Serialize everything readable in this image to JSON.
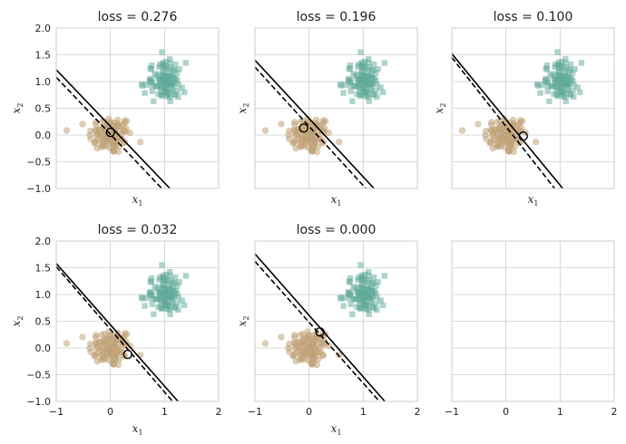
{
  "colors": {
    "class0": "#c4a57c",
    "class1": "#5fa99a",
    "decision": "#000000",
    "margin": "#000000",
    "grid": "#cccccc",
    "frame": "#cccccc"
  },
  "chart_data": [
    {
      "type": "scatter",
      "title": "loss = 0.276",
      "xlabel_main": "x",
      "xlabel_sub": "1",
      "ylabel_main": "x",
      "ylabel_sub": "2",
      "xlim": [
        -1,
        2
      ],
      "ylim": [
        -1,
        2
      ],
      "xticks": [
        -1,
        0,
        1,
        2
      ],
      "yticks": [
        -1.0,
        -0.5,
        0.0,
        0.5,
        1.0,
        1.5,
        2.0
      ],
      "show_xticklabels": false,
      "show_yticklabels": true,
      "show_ylabel": true,
      "grid": true,
      "decision_line": [
        [
          -1.0,
          1.22
        ],
        [
          1.1,
          -1.0
        ]
      ],
      "margin_line": [
        [
          -1.0,
          1.08
        ],
        [
          0.95,
          -1.0
        ]
      ],
      "highlight_point": [
        0.0,
        0.05
      ]
    },
    {
      "type": "scatter",
      "title": "loss = 0.196",
      "xlabel_main": "x",
      "xlabel_sub": "1",
      "ylabel_main": "x",
      "ylabel_sub": "2",
      "xlim": [
        -1,
        2
      ],
      "ylim": [
        -1,
        2
      ],
      "xticks": [
        -1,
        0,
        1,
        2
      ],
      "yticks": [
        -1.0,
        -0.5,
        0.0,
        0.5,
        1.0,
        1.5,
        2.0
      ],
      "show_xticklabels": false,
      "show_yticklabels": false,
      "show_ylabel": true,
      "grid": true,
      "decision_line": [
        [
          -1.0,
          1.4
        ],
        [
          1.2,
          -1.0
        ]
      ],
      "margin_line": [
        [
          -1.0,
          1.27
        ],
        [
          1.05,
          -1.0
        ]
      ],
      "highlight_point": [
        -0.1,
        0.13
      ]
    },
    {
      "type": "scatter",
      "title": "loss = 0.100",
      "xlabel_main": "x",
      "xlabel_sub": "1",
      "ylabel_main": "x",
      "ylabel_sub": "2",
      "xlim": [
        -1,
        2
      ],
      "ylim": [
        -1,
        2
      ],
      "xticks": [
        -1,
        0,
        1,
        2
      ],
      "yticks": [
        -1.0,
        -0.5,
        0.0,
        0.5,
        1.0,
        1.5,
        2.0
      ],
      "show_xticklabels": false,
      "show_yticklabels": false,
      "show_ylabel": true,
      "grid": true,
      "decision_line": [
        [
          -1.0,
          1.52
        ],
        [
          1.05,
          -1.0
        ]
      ],
      "margin_line": [
        [
          -1.0,
          1.45
        ],
        [
          0.9,
          -1.0
        ]
      ],
      "highlight_point": [
        0.32,
        -0.02
      ]
    },
    {
      "type": "scatter",
      "title": "loss = 0.032",
      "xlabel_main": "x",
      "xlabel_sub": "1",
      "ylabel_main": "x",
      "ylabel_sub": "2",
      "xlim": [
        -1,
        2
      ],
      "ylim": [
        -1,
        2
      ],
      "xticks": [
        -1,
        0,
        1,
        2
      ],
      "yticks": [
        -1.0,
        -0.5,
        0.0,
        0.5,
        1.0,
        1.5,
        2.0
      ],
      "show_xticklabels": true,
      "show_yticklabels": true,
      "show_ylabel": true,
      "grid": true,
      "decision_line": [
        [
          -1.0,
          1.58
        ],
        [
          1.25,
          -1.0
        ]
      ],
      "margin_line": [
        [
          -1.0,
          1.52
        ],
        [
          1.15,
          -1.0
        ]
      ],
      "highlight_point": [
        0.32,
        -0.12
      ]
    },
    {
      "type": "scatter",
      "title": "loss = 0.000",
      "xlabel_main": "x",
      "xlabel_sub": "1",
      "ylabel_main": "x",
      "ylabel_sub": "2",
      "xlim": [
        -1,
        2
      ],
      "ylim": [
        -1,
        2
      ],
      "xticks": [
        -1,
        0,
        1,
        2
      ],
      "yticks": [
        -1.0,
        -0.5,
        0.0,
        0.5,
        1.0,
        1.5,
        2.0
      ],
      "show_xticklabels": true,
      "show_yticklabels": false,
      "show_ylabel": true,
      "grid": true,
      "decision_line": [
        [
          -1.0,
          1.76
        ],
        [
          1.4,
          -1.0
        ]
      ],
      "margin_line": [
        [
          -1.0,
          1.62
        ],
        [
          1.3,
          -1.0
        ]
      ],
      "highlight_point": [
        0.2,
        0.3
      ]
    },
    {
      "type": "scatter",
      "title": "",
      "xlabel_main": "x",
      "xlabel_sub": "1",
      "ylabel_main": "x",
      "ylabel_sub": "2",
      "xlim": [
        -1,
        2
      ],
      "ylim": [
        -1,
        2
      ],
      "xticks": [
        -1,
        0,
        1,
        2
      ],
      "yticks": [
        -1.0,
        -0.5,
        0.0,
        0.5,
        1.0,
        1.5,
        2.0
      ],
      "show_xticklabels": true,
      "show_yticklabels": false,
      "show_ylabel": false,
      "show_xlabel": false,
      "grid": true,
      "empty": true
    }
  ],
  "clusters": {
    "class0": {
      "marker": "circle",
      "center": [
        0.0,
        0.0
      ],
      "spread": [
        0.2,
        0.18
      ],
      "count": 110
    },
    "class1": {
      "marker": "square",
      "center": [
        1.0,
        1.0
      ],
      "spread": [
        0.18,
        0.18
      ],
      "count": 110
    }
  }
}
